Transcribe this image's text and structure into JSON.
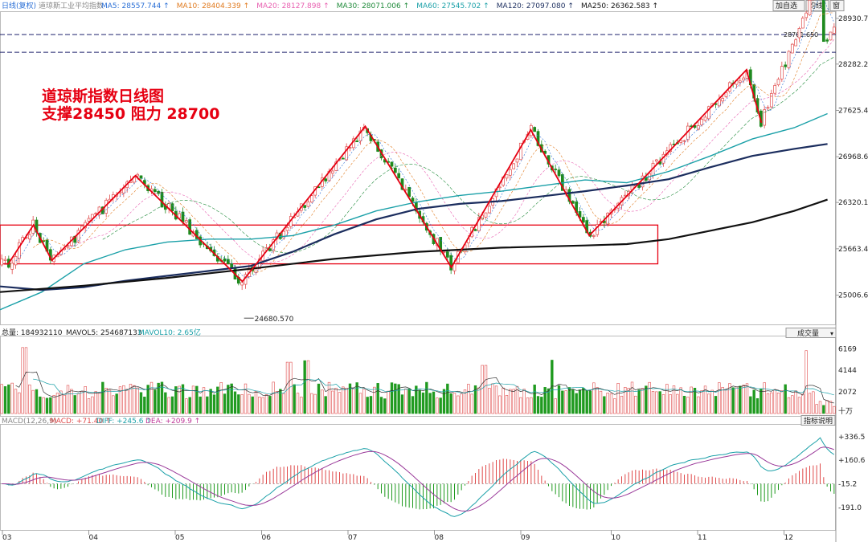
{
  "header": {
    "period_label": "日线(复权)",
    "instrument_name": "道琼斯工业平均指数",
    "ma_values": [
      {
        "label": "MA5: 28557.744",
        "color": "#2a6fd6"
      },
      {
        "label": "MA10: 28404.339",
        "color": "#e07a1f"
      },
      {
        "label": "MA20: 28127.898",
        "color": "#e85fb0"
      },
      {
        "label": "MA30: 28071.006",
        "color": "#1f8a3a"
      },
      {
        "label": "MA60: 27545.702",
        "color": "#1aa0a8"
      },
      {
        "label": "MA120: 27097.080",
        "color": "#1b2d5e"
      },
      {
        "label": "MA250: 26362.583",
        "color": "#111111"
      }
    ],
    "buttons": [
      "加自选",
      "均线",
      "窗"
    ]
  },
  "annotation": {
    "line1": "道琼斯指数日线图",
    "line2": "支撑28450  阻力  28700",
    "color": "#e60012"
  },
  "price_labels": {
    "high_marker": "28701.650",
    "low_marker": "24680.570"
  },
  "volume_header": {
    "total": "总量: 184932110",
    "mavol5": "MAVOL5: 254687133",
    "mavol10": "MAVOL10: 2.65亿",
    "indicator_select": "成交量",
    "unit": "十万"
  },
  "macd_header": {
    "params": "MACD(12,26,9)",
    "macd": "MACD: +71.40",
    "diff": "DIFF: +245.6",
    "dea": "DEA: +209.9",
    "help_button": "指标说明"
  },
  "chart_data": [
    {
      "type": "candlestick",
      "x_ticks": [
        "03",
        "04",
        "05",
        "06",
        "07",
        "08",
        "09",
        "10",
        "11",
        "12"
      ],
      "y_ticks": [
        28930.7,
        28282.23,
        27625.44,
        26968.66,
        26320.19,
        25663.41,
        25006.62
      ],
      "ylim": [
        24580,
        29020
      ],
      "horizontal_lines": [
        28701.65,
        28450
      ],
      "swing_points": [
        {
          "x": 0.005,
          "y": 25450
        },
        {
          "x": 0.01,
          "y": 25450
        },
        {
          "x": 0.04,
          "y": 26000
        },
        {
          "x": 0.062,
          "y": 25500
        },
        {
          "x": 0.162,
          "y": 26700
        },
        {
          "x": 0.29,
          "y": 25200
        },
        {
          "x": 0.437,
          "y": 27400
        },
        {
          "x": 0.54,
          "y": 25400
        },
        {
          "x": 0.635,
          "y": 27350
        },
        {
          "x": 0.705,
          "y": 25850
        },
        {
          "x": 0.893,
          "y": 28200
        },
        {
          "x": 0.911,
          "y": 27450
        }
      ],
      "low_point": {
        "x": 0.292,
        "y": 24680.57
      },
      "support_box": {
        "x0": 0.0,
        "x1": 0.787,
        "y_top": 26000,
        "y_bottom": 25450
      },
      "ma_lines": {
        "MA60": [
          [
            0,
            24800
          ],
          [
            0.05,
            25050
          ],
          [
            0.1,
            25450
          ],
          [
            0.15,
            25650
          ],
          [
            0.2,
            25760
          ],
          [
            0.25,
            25800
          ],
          [
            0.3,
            25800
          ],
          [
            0.35,
            25850
          ],
          [
            0.4,
            26000
          ],
          [
            0.45,
            26200
          ],
          [
            0.5,
            26330
          ],
          [
            0.55,
            26420
          ],
          [
            0.6,
            26480
          ],
          [
            0.65,
            26560
          ],
          [
            0.7,
            26640
          ],
          [
            0.75,
            26600
          ],
          [
            0.8,
            26760
          ],
          [
            0.85,
            26980
          ],
          [
            0.9,
            27220
          ],
          [
            0.95,
            27380
          ],
          [
            0.99,
            27580
          ]
        ],
        "MA120": [
          [
            0,
            25130
          ],
          [
            0.05,
            25080
          ],
          [
            0.1,
            25120
          ],
          [
            0.15,
            25210
          ],
          [
            0.2,
            25280
          ],
          [
            0.25,
            25350
          ],
          [
            0.3,
            25420
          ],
          [
            0.35,
            25620
          ],
          [
            0.4,
            25870
          ],
          [
            0.45,
            26080
          ],
          [
            0.5,
            26230
          ],
          [
            0.55,
            26300
          ],
          [
            0.6,
            26340
          ],
          [
            0.65,
            26410
          ],
          [
            0.7,
            26480
          ],
          [
            0.75,
            26560
          ],
          [
            0.8,
            26650
          ],
          [
            0.85,
            26820
          ],
          [
            0.9,
            26980
          ],
          [
            0.95,
            27080
          ],
          [
            0.99,
            27150
          ]
        ],
        "MA250": [
          [
            0,
            25050
          ],
          [
            0.1,
            25140
          ],
          [
            0.2,
            25250
          ],
          [
            0.3,
            25380
          ],
          [
            0.4,
            25520
          ],
          [
            0.5,
            25620
          ],
          [
            0.6,
            25680
          ],
          [
            0.7,
            25710
          ],
          [
            0.75,
            25730
          ],
          [
            0.8,
            25800
          ],
          [
            0.85,
            25920
          ],
          [
            0.9,
            26040
          ],
          [
            0.95,
            26200
          ],
          [
            0.99,
            26360
          ]
        ]
      }
    },
    {
      "type": "bar",
      "name": "成交量",
      "y_ticks": [
        6169,
        4144,
        2072
      ],
      "ylim": [
        0,
        6900
      ],
      "bar_count": 240,
      "spikes": [
        {
          "x": 0.03,
          "value": 6300
        },
        {
          "x": 0.345,
          "value": 4900
        },
        {
          "x": 0.367,
          "value": 5050
        },
        {
          "x": 0.58,
          "value": 4600
        },
        {
          "x": 0.66,
          "value": 5100
        },
        {
          "x": 0.965,
          "value": 6000
        }
      ]
    },
    {
      "type": "bar",
      "name": "MACD",
      "y_ticks": [
        336.5,
        160.6,
        -15.2,
        -191.0
      ],
      "ylim": [
        -360,
        420
      ]
    }
  ]
}
